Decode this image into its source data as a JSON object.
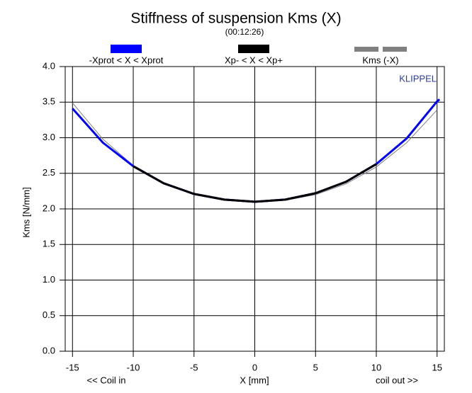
{
  "chart_data": {
    "type": "line",
    "title": "Stiffness of suspension Kms (X)",
    "subtitle": "(00:12:26)",
    "annotation": "KLIPPEL",
    "x_label": "X [mm]",
    "x_left_label": "<< Coil in",
    "x_right_label": "coil out >>",
    "y_label": "Kms [N/mm]",
    "xlim": [
      -15.6,
      15.6
    ],
    "ylim": [
      0,
      4
    ],
    "xticks": [
      -15,
      -10,
      -5,
      0,
      5,
      10,
      15
    ],
    "yticks": [
      {
        "value": 0,
        "label": "0.0"
      },
      {
        "value": 0.5,
        "label": "0.5"
      },
      {
        "value": 1,
        "label": "1.0"
      },
      {
        "value": 1.5,
        "label": "1.5"
      },
      {
        "value": 2,
        "label": "2.0"
      },
      {
        "value": 2.5,
        "label": "2.5"
      },
      {
        "value": 3,
        "label": "3.0"
      },
      {
        "value": 3.5,
        "label": "3.5"
      },
      {
        "value": 4,
        "label": "4.0"
      }
    ],
    "grid": true,
    "series": [
      {
        "name": "Kms (-X)",
        "color": "#808080",
        "x": [
          -15,
          -12.5,
          -10,
          -7.5,
          -5,
          -2.5,
          0,
          2.5,
          5,
          7.5,
          10,
          12.5,
          15
        ],
        "values": [
          3.49,
          2.98,
          2.61,
          2.36,
          2.2,
          2.12,
          2.09,
          2.12,
          2.2,
          2.35,
          2.59,
          2.93,
          3.39
        ]
      },
      {
        "name": "-Xprot < X < Xprot",
        "color": "#0000ff",
        "x": [
          -15,
          -12.5,
          -10,
          -7.5,
          -5,
          -2.5,
          0,
          2.5,
          5,
          7.5,
          10,
          12.5,
          15,
          15.2
        ],
        "values": [
          3.41,
          2.93,
          2.6,
          2.36,
          2.21,
          2.13,
          2.1,
          2.13,
          2.22,
          2.38,
          2.63,
          2.99,
          3.51,
          3.54
        ]
      },
      {
        "name": "Xp- < X < Xp+",
        "color": "#000000",
        "x": [
          -10,
          -7.5,
          -5,
          -2.5,
          0,
          2.5,
          5,
          7.5,
          10
        ],
        "values": [
          2.6,
          2.36,
          2.21,
          2.13,
          2.1,
          2.13,
          2.22,
          2.38,
          2.63
        ]
      }
    ]
  }
}
